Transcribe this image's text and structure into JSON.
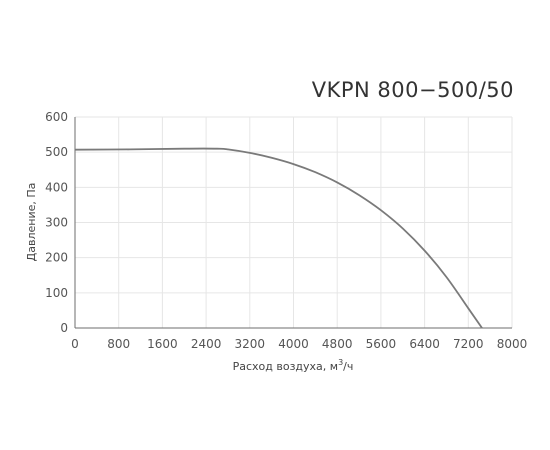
{
  "chart_data": {
    "type": "line",
    "title": "VKPN 800−500/50",
    "xlabel_base": "Расход воздуха, м",
    "xlabel_sup": "3",
    "xlabel_tail": "/ч",
    "ylabel": "Давление, Па",
    "xlim": [
      0,
      8000
    ],
    "ylim": [
      0,
      600
    ],
    "x_ticks": [
      "0",
      "800",
      "1600",
      "2400",
      "3200",
      "4000",
      "4800",
      "5600",
      "6400",
      "7200",
      "8000"
    ],
    "y_ticks": [
      "0",
      "100",
      "200",
      "300",
      "400",
      "500",
      "600"
    ],
    "grid": true,
    "colors": {
      "curve": "#7a7a7a",
      "grid": "#e6e6e6",
      "axis": "#6e6e6e"
    },
    "series": [
      {
        "x": [
          0,
          1000,
          2000,
          2600,
          2800,
          3200,
          3600,
          4000,
          4400,
          4800,
          5200,
          5600,
          6000,
          6400,
          6800,
          7200,
          7450
        ],
        "y": [
          507,
          508,
          510,
          510,
          508,
          498,
          484,
          466,
          443,
          414,
          378,
          335,
          283,
          220,
          145,
          56,
          0
        ]
      }
    ]
  }
}
